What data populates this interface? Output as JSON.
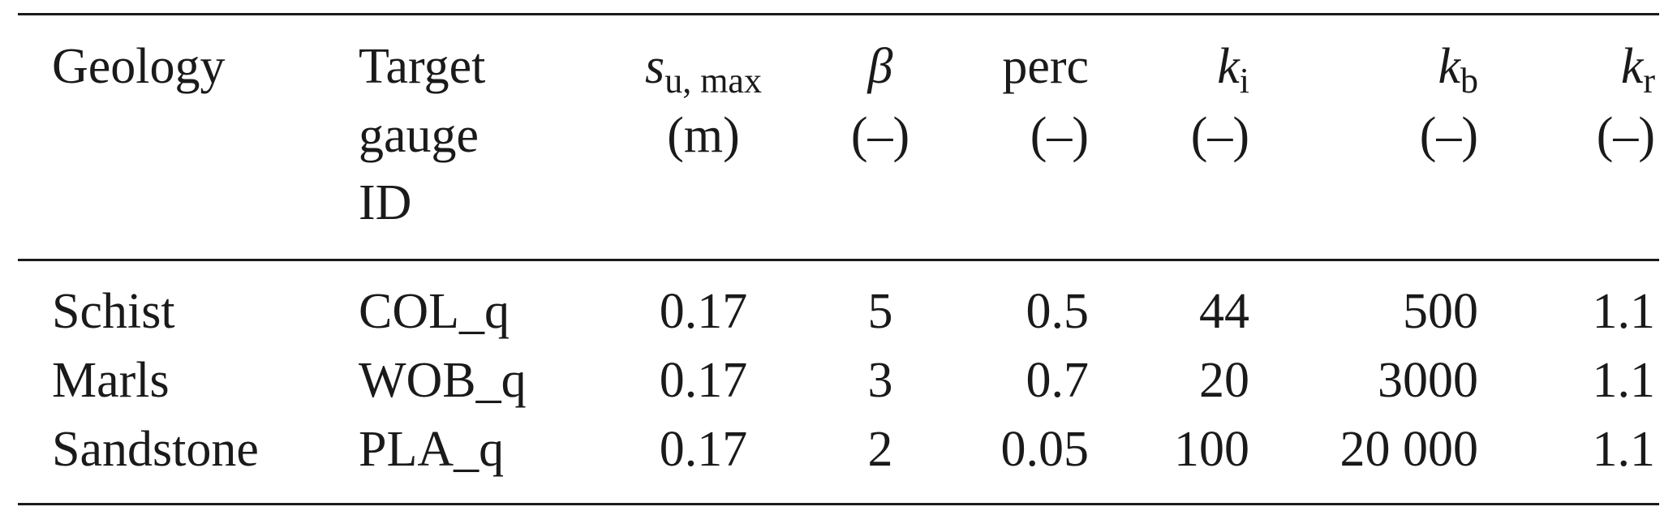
{
  "table": {
    "header": {
      "geology": "Geology",
      "target_gauge_id_lines": [
        "Target",
        "gauge",
        "ID"
      ],
      "su_max": {
        "symbol": "s",
        "subscript": "u, max",
        "unit": "(m)"
      },
      "beta": {
        "symbol": "β",
        "unit": "(–)"
      },
      "perc": {
        "symbol": "perc",
        "unit": "(–)"
      },
      "ki": {
        "symbol": "k",
        "subscript": "i",
        "unit": "(–)"
      },
      "kb": {
        "symbol": "k",
        "subscript": "b",
        "unit": "(–)"
      },
      "kr": {
        "symbol": "k",
        "subscript": "r",
        "unit": "(–)"
      }
    },
    "rows": [
      {
        "geology": "Schist",
        "target": "COL_q",
        "su_max": "0.17",
        "beta": "5",
        "perc": "0.5",
        "ki": "44",
        "kb": "500",
        "kr": "1.1"
      },
      {
        "geology": "Marls",
        "target": "WOB_q",
        "su_max": "0.17",
        "beta": "3",
        "perc": "0.7",
        "ki": "20",
        "kb": "3000",
        "kr": "1.1"
      },
      {
        "geology": "Sandstone",
        "target": "PLA_q",
        "su_max": "0.17",
        "beta": "2",
        "perc": "0.05",
        "ki": "100",
        "kb": "20 000",
        "kr": "1.1"
      }
    ]
  }
}
